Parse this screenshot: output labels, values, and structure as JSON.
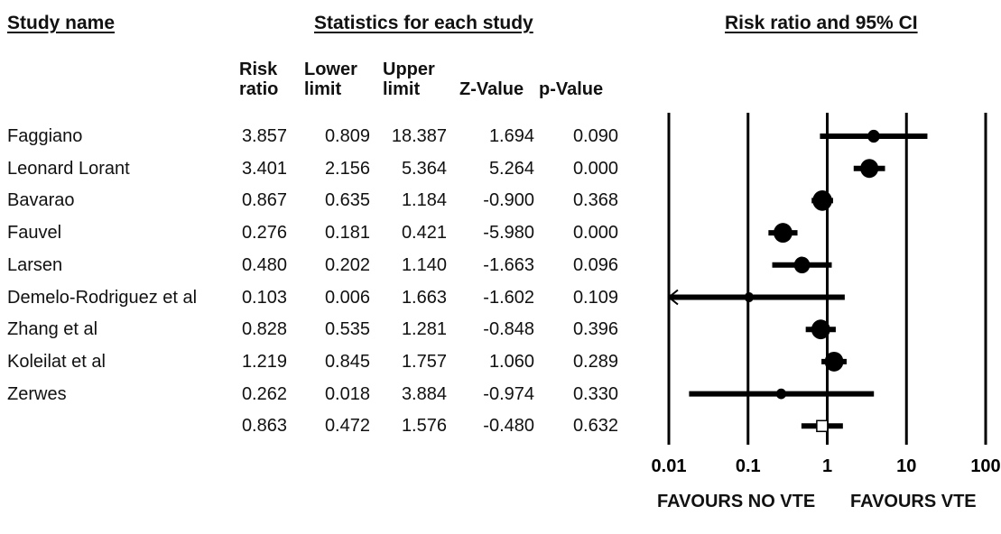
{
  "headers": {
    "study_name": "Study name",
    "statistics": "Statistics for each study",
    "plot": "Risk ratio and 95% CI"
  },
  "columns": [
    {
      "line1": "Risk",
      "line2": "ratio"
    },
    {
      "line1": "Lower",
      "line2": "limit"
    },
    {
      "line1": "Upper",
      "line2": "limit"
    },
    {
      "line1": "",
      "line2": "Z-Value"
    },
    {
      "line1": "",
      "line2": "p-Value"
    }
  ],
  "rows": [
    {
      "study": "Faggiano",
      "rr": "3.857",
      "lower": "0.809",
      "upper": "18.387",
      "z": "1.694",
      "p": "0.090"
    },
    {
      "study": "Leonard Lorant",
      "rr": "3.401",
      "lower": "2.156",
      "upper": "5.364",
      "z": "5.264",
      "p": "0.000"
    },
    {
      "study": "Bavarao",
      "rr": "0.867",
      "lower": "0.635",
      "upper": "1.184",
      "z": "-0.900",
      "p": "0.368"
    },
    {
      "study": "Fauvel",
      "rr": "0.276",
      "lower": "0.181",
      "upper": "0.421",
      "z": "-5.980",
      "p": "0.000"
    },
    {
      "study": "Larsen",
      "rr": "0.480",
      "lower": "0.202",
      "upper": "1.140",
      "z": "-1.663",
      "p": "0.096"
    },
    {
      "study": "Demelo-Rodriguez et al",
      "rr": "0.103",
      "lower": "0.006",
      "upper": "1.663",
      "z": "-1.602",
      "p": "0.109"
    },
    {
      "study": "Zhang et al",
      "rr": "0.828",
      "lower": "0.535",
      "upper": "1.281",
      "z": "-0.848",
      "p": "0.396"
    },
    {
      "study": "Koleilat et al",
      "rr": "1.219",
      "lower": "0.845",
      "upper": "1.757",
      "z": "1.060",
      "p": "0.289"
    },
    {
      "study": "Zerwes",
      "rr": "0.262",
      "lower": "0.018",
      "upper": "3.884",
      "z": "-0.974",
      "p": "0.330"
    },
    {
      "study": "",
      "rr": "0.863",
      "lower": "0.472",
      "upper": "1.576",
      "z": "-0.480",
      "p": "0.632"
    }
  ],
  "chart_data": {
    "type": "forest",
    "scale": "log",
    "xlim": [
      0.01,
      100
    ],
    "tick_labels": [
      "0.01",
      "0.1",
      "1",
      "10",
      "100"
    ],
    "tick_values": [
      0.01,
      0.1,
      1,
      10,
      100
    ],
    "footer_labels": [
      "FAVOURS NO VTE",
      "FAVOURS VTE"
    ],
    "studies": [
      {
        "name": "Faggiano",
        "rr": 3.857,
        "lower": 0.809,
        "upper": 18.387,
        "weight": 0.35
      },
      {
        "name": "Leonard Lorant",
        "rr": 3.401,
        "lower": 2.156,
        "upper": 5.364,
        "weight": 0.75
      },
      {
        "name": "Bavarao",
        "rr": 0.867,
        "lower": 0.635,
        "upper": 1.184,
        "weight": 0.85
      },
      {
        "name": "Fauvel",
        "rr": 0.276,
        "lower": 0.181,
        "upper": 0.421,
        "weight": 0.8
      },
      {
        "name": "Larsen",
        "rr": 0.48,
        "lower": 0.202,
        "upper": 1.14,
        "weight": 0.6
      },
      {
        "name": "Demelo-Rodriguez et al",
        "rr": 0.103,
        "lower": 0.006,
        "upper": 1.663,
        "weight": 0.15
      },
      {
        "name": "Zhang et al",
        "rr": 0.828,
        "lower": 0.535,
        "upper": 1.281,
        "weight": 0.8
      },
      {
        "name": "Koleilat et al",
        "rr": 1.219,
        "lower": 0.845,
        "upper": 1.757,
        "weight": 0.8
      },
      {
        "name": "Zerwes",
        "rr": 0.262,
        "lower": 0.018,
        "upper": 3.884,
        "weight": 0.2
      }
    ],
    "pooled": {
      "rr": 0.863,
      "lower": 0.472,
      "upper": 1.576
    }
  }
}
